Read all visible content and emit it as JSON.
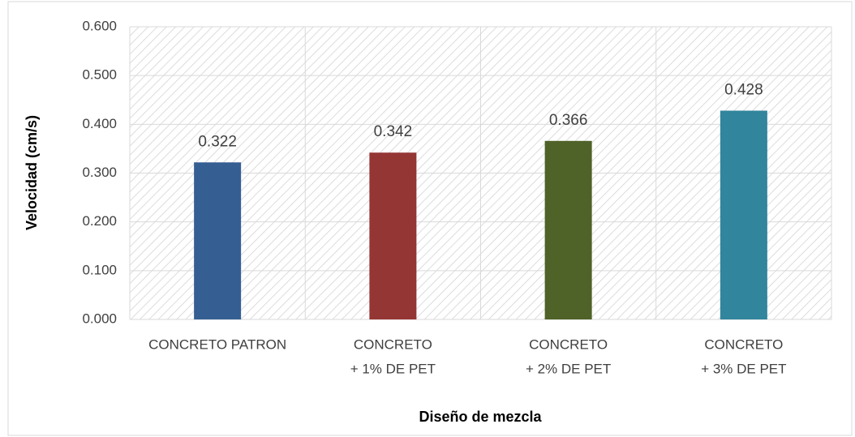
{
  "chart_data": {
    "type": "bar",
    "categories": [
      [
        "CONCRETO PATRON"
      ],
      [
        "CONCRETO",
        "+ 1% DE PET"
      ],
      [
        "CONCRETO",
        "+ 2% DE PET"
      ],
      [
        "CONCRETO",
        "+ 3% DE PET"
      ]
    ],
    "values": [
      0.322,
      0.342,
      0.366,
      0.428
    ],
    "colors": [
      "#355f93",
      "#943634",
      "#4f6228",
      "#31859c"
    ],
    "x_label": "Diseño de mezcla",
    "y_label": "Velocidad  (cm/s)",
    "ylim": [
      0,
      0.6
    ],
    "yticks": [
      {
        "value": 0,
        "label": "0.000"
      },
      {
        "value": 0.1,
        "label": "0.100"
      },
      {
        "value": 0.2,
        "label": "0.200"
      },
      {
        "value": 0.3,
        "label": "0.300"
      },
      {
        "value": 0.4,
        "label": "0.400"
      },
      {
        "value": 0.5,
        "label": "0.500"
      },
      {
        "value": 0.6,
        "label": "0.600"
      }
    ],
    "grid": true
  }
}
